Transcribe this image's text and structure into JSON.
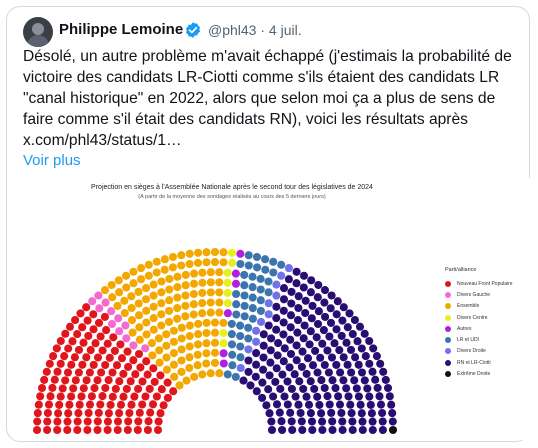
{
  "author": {
    "name": "Philippe Lemoine",
    "handle": "@phl43",
    "separator": "·",
    "date": "4 juil."
  },
  "tweet": {
    "text": "Désolé, un autre problème m'avait échappé (j'estimais la probabilité de\nvictoire des candidats LR-Ciotti comme s'ils étaient des candidats LR\n\"canal historique\" en 2022, alors que selon moi ça a plus de sens de\nfaire comme s'il était des candidats RN), voici les résultats après\nx.com/phl43/status/1…",
    "more": "Voir plus"
  },
  "icons": {
    "avatar": "avatar-icon",
    "verified": "verified-badge-icon"
  },
  "colors": {
    "verified": "#1d9bf0",
    "link": "#1d9bf0"
  },
  "chart": {
    "title": "Projection en sièges à l'Assemblée Nationale après le second tour des législatives de 2024",
    "subtitle": "(A partir de la moyenne des sondages réalisés au cours des 5 derniers jours)",
    "legend_title": "Parti/alliance"
  },
  "chart_data": {
    "type": "hemicycle",
    "series": [
      {
        "name": "Nouveau Front Populaire",
        "color": "#e0161c",
        "seats": 150
      },
      {
        "name": "Divers Gauche",
        "color": "#f36bd1",
        "seats": 12
      },
      {
        "name": "Ensemble",
        "color": "#f3a800",
        "seats": 139
      },
      {
        "name": "Divers Centre",
        "color": "#e8f01b",
        "seats": 8
      },
      {
        "name": "Autres",
        "color": "#b31fe0",
        "seats": 6
      },
      {
        "name": "LR et UDI",
        "color": "#3c75ad",
        "seats": 42
      },
      {
        "name": "Divers Droite",
        "color": "#6f72e8",
        "seats": 11
      },
      {
        "name": "RN et LR-Ciotti",
        "color": "#2a0d73",
        "seats": 208
      },
      {
        "name": "Extrême Droite",
        "color": "#111111",
        "seats": 1
      }
    ]
  }
}
